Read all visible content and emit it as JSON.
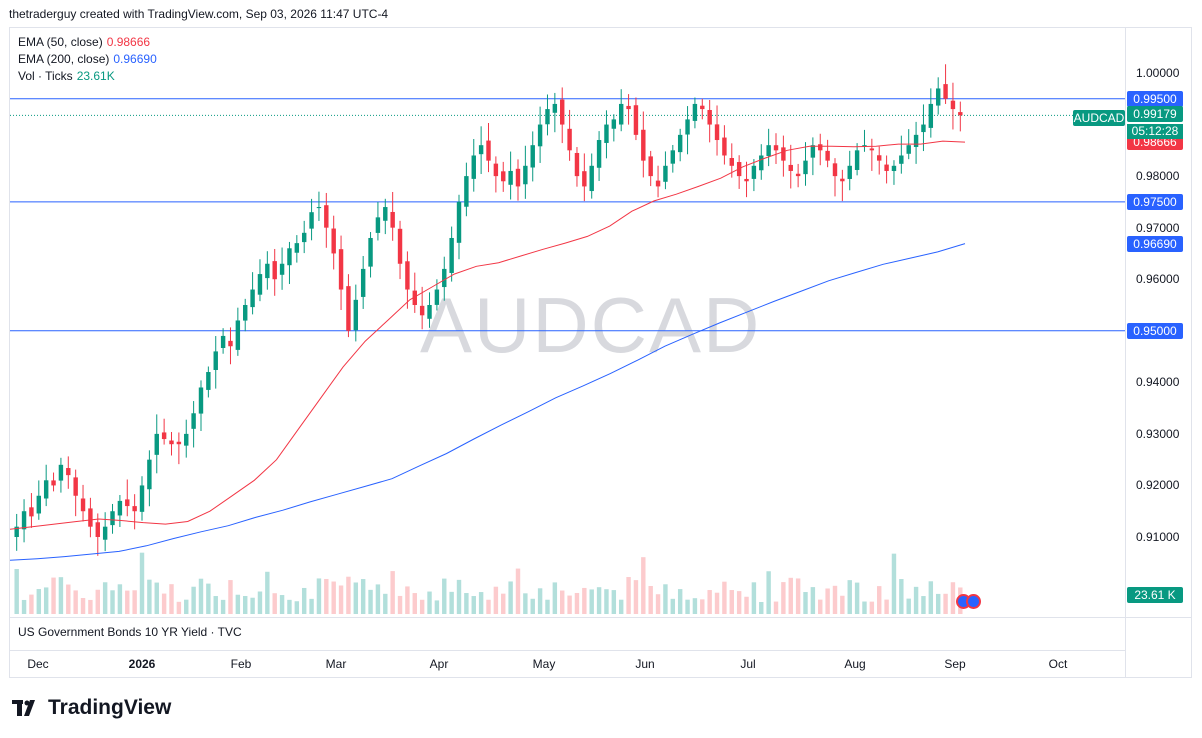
{
  "header": {
    "text": "thetraderguy created with TradingView.com, Sep 03, 2026 11:47 UTC-4"
  },
  "legend": {
    "ema50": {
      "label": "EMA (50, close)",
      "value": "0.98666",
      "color": "#f23645"
    },
    "ema200": {
      "label": "EMA (200, close)",
      "value": "0.96690",
      "color": "#2962ff"
    },
    "vol": {
      "label": "Vol · Ticks",
      "value": "23.61K",
      "color": "#089981"
    }
  },
  "watermark": "AUDCAD",
  "symbol": "AUDCAD",
  "countdown": "05:12:28",
  "pane2_label": "US Government Bonds 10 YR Yield · TVC",
  "volume_badge": "23.61 K",
  "brand": "TradingView",
  "colors": {
    "up": "#089981",
    "down": "#f23645",
    "ema50": "#f23645",
    "ema200": "#2962ff",
    "hline": "#2962ff",
    "vol_up": "#b2dfdb",
    "vol_down": "#fccbcd"
  },
  "chart_data": {
    "type": "candlestick",
    "ylim": [
      0.905,
      1.0
    ],
    "price_ticks": [
      "1.00000",
      "0.98000",
      "0.97000",
      "0.96000",
      "0.94000",
      "0.93000",
      "0.92000",
      "0.91000"
    ],
    "time_labels": [
      {
        "label": "Dec",
        "bold": false
      },
      {
        "label": "2026",
        "bold": true
      },
      {
        "label": "Feb",
        "bold": false
      },
      {
        "label": "Mar",
        "bold": false
      },
      {
        "label": "Apr",
        "bold": false
      },
      {
        "label": "May",
        "bold": false
      },
      {
        "label": "Jun",
        "bold": false
      },
      {
        "label": "Jul",
        "bold": false
      },
      {
        "label": "Aug",
        "bold": false
      },
      {
        "label": "Sep",
        "bold": false
      },
      {
        "label": "Oct",
        "bold": false
      }
    ],
    "horizontal_lines": [
      {
        "value": 0.995,
        "label": "0.99500"
      },
      {
        "value": 0.975,
        "label": "0.97500"
      },
      {
        "value": 0.95,
        "label": "0.95000"
      }
    ],
    "last_price": {
      "value": 0.99179,
      "label": "0.99179"
    },
    "ema50_badge": {
      "value": 0.98666,
      "label": "0.98666"
    },
    "ema200_badge": {
      "value": 0.9669,
      "label": "0.96690"
    },
    "close_path": [
      0.912,
      0.915,
      0.914,
      0.918,
      0.921,
      0.92,
      0.924,
      0.922,
      0.918,
      0.915,
      0.912,
      0.91,
      0.912,
      0.915,
      0.917,
      0.916,
      0.915,
      0.92,
      0.925,
      0.93,
      0.929,
      0.928,
      0.928,
      0.93,
      0.934,
      0.939,
      0.942,
      0.946,
      0.949,
      0.947,
      0.952,
      0.955,
      0.958,
      0.961,
      0.963,
      0.96,
      0.963,
      0.966,
      0.967,
      0.969,
      0.973,
      0.974,
      0.97,
      0.965,
      0.958,
      0.95,
      0.956,
      0.962,
      0.968,
      0.972,
      0.974,
      0.97,
      0.963,
      0.958,
      0.955,
      0.953,
      0.955,
      0.958,
      0.962,
      0.968,
      0.975,
      0.98,
      0.984,
      0.986,
      0.983,
      0.98,
      0.979,
      0.981,
      0.978,
      0.982,
      0.986,
      0.99,
      0.993,
      0.994,
      0.99,
      0.985,
      0.98,
      0.978,
      0.982,
      0.987,
      0.99,
      0.991,
      0.994,
      0.993,
      0.988,
      0.983,
      0.98,
      0.978,
      0.982,
      0.985,
      0.988,
      0.991,
      0.994,
      0.993,
      0.99,
      0.987,
      0.984,
      0.982,
      0.98,
      0.979,
      0.982,
      0.984,
      0.986,
      0.985,
      0.983,
      0.981,
      0.98,
      0.983,
      0.986,
      0.985,
      0.983,
      0.98,
      0.979,
      0.982,
      0.985,
      0.986,
      0.985,
      0.983,
      0.981,
      0.982,
      0.984,
      0.986,
      0.988,
      0.99,
      0.994,
      0.997,
      0.995,
      0.993,
      0.99179
    ],
    "ema50_path": [
      0.9115,
      0.912,
      0.9125,
      0.913,
      0.9135,
      0.9132,
      0.9128,
      0.9125,
      0.913,
      0.915,
      0.918,
      0.921,
      0.925,
      0.931,
      0.937,
      0.943,
      0.948,
      0.952,
      0.956,
      0.9585,
      0.961,
      0.9625,
      0.9632,
      0.9645,
      0.9658,
      0.967,
      0.9683,
      0.9703,
      0.9732,
      0.9752,
      0.9765,
      0.978,
      0.9796,
      0.9818,
      0.9835,
      0.985,
      0.9858,
      0.9858,
      0.9857,
      0.9858,
      0.9862,
      0.9862,
      0.9868,
      0.9866
    ],
    "ema200_path": [
      0.9055,
      0.9058,
      0.9062,
      0.9067,
      0.9072,
      0.9083,
      0.9097,
      0.911,
      0.9122,
      0.9138,
      0.9152,
      0.9168,
      0.9183,
      0.9198,
      0.9213,
      0.9238,
      0.9262,
      0.929,
      0.9317,
      0.9343,
      0.937,
      0.9393,
      0.9417,
      0.9443,
      0.947,
      0.9493,
      0.9515,
      0.9536,
      0.9557,
      0.9577,
      0.9597,
      0.9613,
      0.9629,
      0.9641,
      0.9653,
      0.9669
    ]
  }
}
